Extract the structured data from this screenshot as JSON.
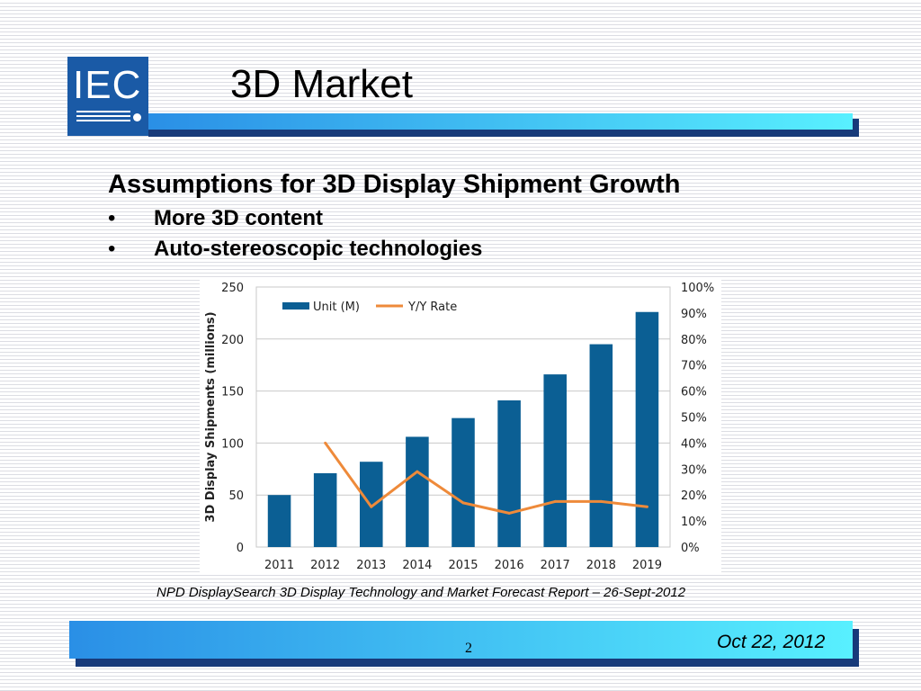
{
  "logo": {
    "text": "IEC",
    "color": "#1a5aa6"
  },
  "slide": {
    "title": "3D Market",
    "heading": "Assumptions for 3D Display Shipment Growth",
    "bullets": [
      "More 3D content",
      "Auto-stereoscopic technologies"
    ],
    "bullet_char": "•",
    "source": "NPD DisplaySearch 3D Display Technology and Market Forecast Report – 26-Sept-2012",
    "page_number": "2",
    "date": "Oct 22, 2012"
  },
  "chart_data": {
    "type": "bar",
    "categories": [
      "2011",
      "2012",
      "2013",
      "2014",
      "2015",
      "2016",
      "2017",
      "2018",
      "2019"
    ],
    "series": [
      {
        "name": "Unit (M)",
        "type": "bar",
        "axis": "left",
        "color": "#0b5f94",
        "values": [
          50,
          71,
          82,
          106,
          124,
          141,
          166,
          195,
          226
        ]
      },
      {
        "name": "Y/Y Rate",
        "type": "line",
        "axis": "right",
        "color": "#ee8a3a",
        "values": [
          null,
          40,
          15.5,
          29,
          17,
          13,
          17.5,
          17.5,
          15.5
        ]
      }
    ],
    "ylabel": "3D Display Shipments (millions)",
    "ylim": [
      0,
      250
    ],
    "yticks": [
      0,
      50,
      100,
      150,
      200,
      250
    ],
    "y2lim": [
      0,
      100
    ],
    "y2ticks": [
      "0%",
      "10%",
      "20%",
      "30%",
      "40%",
      "50%",
      "60%",
      "70%",
      "80%",
      "90%",
      "100%"
    ],
    "grid": true,
    "legend": "top-left"
  }
}
